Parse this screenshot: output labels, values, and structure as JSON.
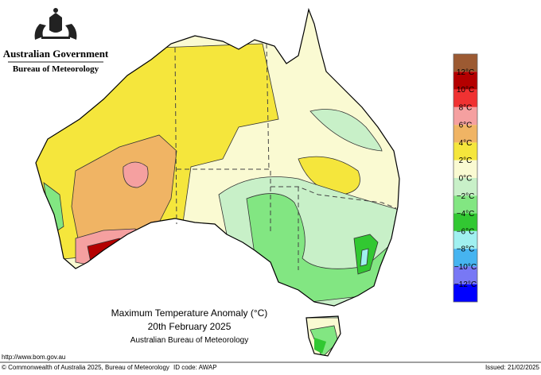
{
  "header": {
    "government": "Australian Government",
    "agency": "Bureau of Meteorology"
  },
  "map": {
    "title": "Maximum Temperature Anomaly (°C)",
    "date": "20th February 2025",
    "source": "Australian Bureau of Meteorology"
  },
  "legend": {
    "colors": [
      "#9c5a32",
      "#b40000",
      "#f03232",
      "#f5a0a0",
      "#f0b464",
      "#f5e63c",
      "#fafad2",
      "#c8f0c8",
      "#82e682",
      "#32c832",
      "#a0f0f0",
      "#46b4f0",
      "#7878f5",
      "#0000ff"
    ],
    "labels": [
      "12°C",
      "10°C",
      "8°C",
      "6°C",
      "4°C",
      "2°C",
      "0°C",
      "−2°C",
      "−4°C",
      "−6°C",
      "−8°C",
      "−10°C",
      "−12°C"
    ]
  },
  "footer": {
    "url": "http://www.bom.gov.au",
    "copyright": "© Commonwealth of Australia 2025, Bureau of Meteorology",
    "id_code": "ID code: AWAP",
    "issued": "Issued: 21/02/2025"
  }
}
